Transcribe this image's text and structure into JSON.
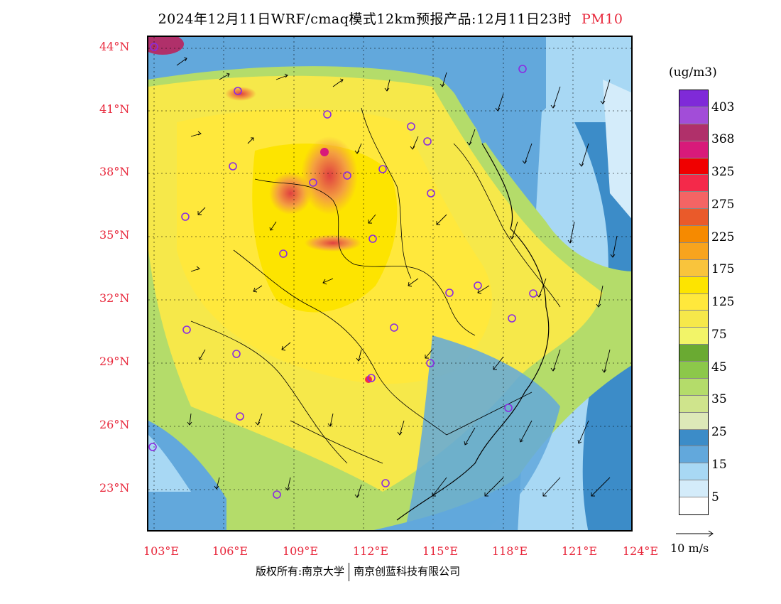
{
  "title": {
    "main": "2024年12月11日WRF/cmaq模式12km预报产品:12月11日23时",
    "variable": "PM10"
  },
  "axes": {
    "lat_labels": [
      "44°N",
      "41°N",
      "38°N",
      "35°N",
      "32°N",
      "29°N",
      "26°N",
      "23°N"
    ],
    "lon_labels": [
      "103°E",
      "106°E",
      "109°E",
      "112°E",
      "115°E",
      "118°E",
      "121°E",
      "124°E"
    ]
  },
  "legend": {
    "unit": "(ug/m3)",
    "labels": [
      "403",
      "368",
      "325",
      "275",
      "225",
      "175",
      "125",
      "75",
      "45",
      "35",
      "25",
      "15",
      "5"
    ],
    "colors": [
      "#7f2ad8",
      "#a24dd8",
      "#b0306a",
      "#d81a7a",
      "#f00000",
      "#f4294a",
      "#f46464",
      "#ea5a2a",
      "#f68a00",
      "#f8a41e",
      "#f9c43c",
      "#fde400",
      "#ffe83c",
      "#f6e84a",
      "#f2f468",
      "#6aaa32",
      "#8cc84a",
      "#b4dc6a",
      "#cfe48c",
      "#dde8b8",
      "#3c8cc8",
      "#62a8dc",
      "#a8d8f4",
      "#d4ecfa",
      "#ffffff"
    ]
  },
  "wind_reference": "10 m/s",
  "footer": {
    "left": "版权所有:南京大学",
    "right": "南京创蓝科技有限公司"
  }
}
